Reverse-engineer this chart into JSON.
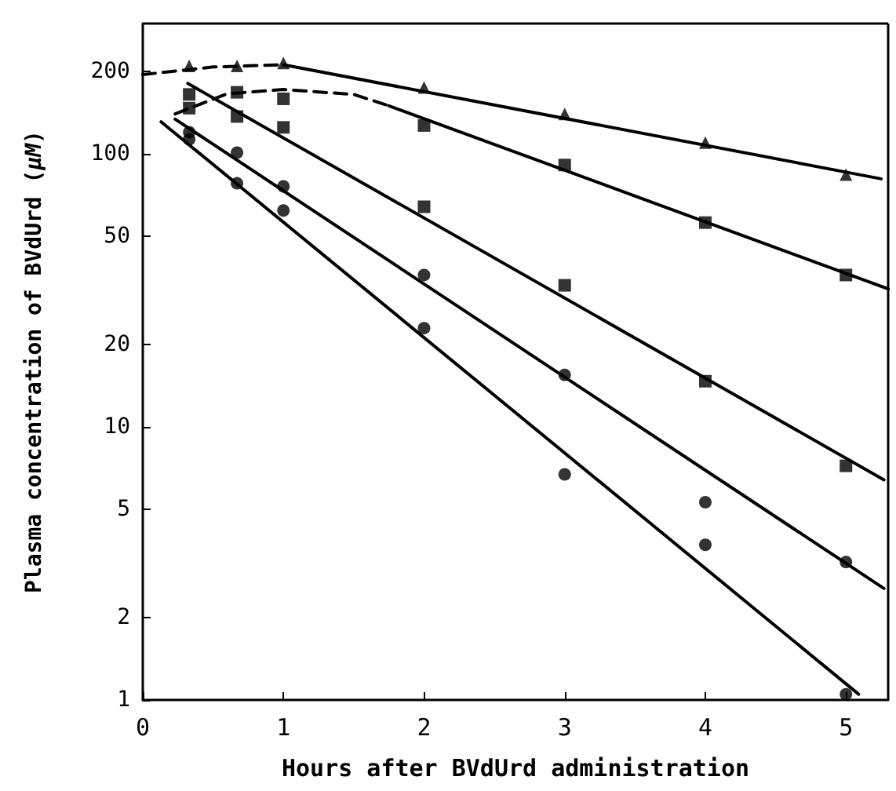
{
  "chart_data": {
    "type": "scatter",
    "xlabel": "Hours after BVdUrd administration",
    "ylabel": "Plasma concentration of BVdUrd (μM)",
    "log": "y",
    "grid": false,
    "xlim": [
      0,
      5.3
    ],
    "xticks": [
      0,
      1,
      2,
      3,
      4,
      5
    ],
    "ylim": [
      1,
      300
    ],
    "yticks": [
      1,
      2,
      5,
      10,
      20,
      50,
      100,
      200
    ],
    "series": [
      {
        "color": "#000000",
        "marker": "triangle",
        "x": [
          0.33,
          0.67,
          1,
          2,
          3,
          4,
          5
        ],
        "values": [
          210,
          210,
          215,
          175,
          140,
          110,
          84
        ]
      },
      {
        "color": "#000000",
        "marker": "square",
        "x": [
          0.33,
          0.67,
          1,
          2,
          3,
          4,
          5
        ],
        "values": [
          147,
          168,
          159,
          127,
          91,
          56,
          36
        ]
      },
      {
        "color": "#000000",
        "marker": "square",
        "x": [
          0.33,
          0.67,
          1,
          2,
          3,
          4,
          5
        ],
        "values": [
          165,
          137,
          125,
          64,
          33,
          14.7,
          7.2
        ]
      },
      {
        "color": "#000000",
        "marker": "circle",
        "x": [
          0.33,
          0.67,
          1,
          2,
          3,
          4,
          5
        ],
        "values": [
          120,
          101,
          76,
          36,
          15.5,
          5.3,
          3.2
        ]
      },
      {
        "color": "#000000",
        "marker": "circle",
        "x": [
          0.33,
          0.67,
          1,
          2,
          3,
          4,
          5
        ],
        "values": [
          113,
          78,
          62,
          23,
          6.7,
          3.7,
          1.05
        ]
      },
      {
        "type": "line",
        "color": "#000000",
        "marker": "none",
        "line_style": "dashed",
        "x": [
          0,
          0.5,
          1
        ],
        "values": [
          195,
          208,
          212
        ]
      },
      {
        "type": "line",
        "color": "#000000",
        "marker": "none",
        "line_style": "solid",
        "x": [
          1,
          5.25
        ],
        "values": [
          212,
          81
        ]
      },
      {
        "type": "line",
        "color": "#000000",
        "marker": "none",
        "line_style": "dashed",
        "x": [
          0.23,
          0.6,
          1,
          1.5,
          1.75
        ],
        "values": [
          140,
          166,
          172,
          165,
          150
        ]
      },
      {
        "type": "line",
        "color": "#000000",
        "marker": "none",
        "line_style": "solid",
        "x": [
          1.75,
          5.3
        ],
        "values": [
          150,
          32
        ]
      },
      {
        "type": "line",
        "color": "#000000",
        "marker": "none",
        "line_style": "solid",
        "x": [
          0.32,
          5.27
        ],
        "values": [
          181,
          6.4
        ]
      },
      {
        "type": "line",
        "color": "#000000",
        "marker": "none",
        "line_style": "solid",
        "x": [
          0.23,
          5.27
        ],
        "values": [
          134,
          2.56
        ]
      },
      {
        "type": "line",
        "color": "#000000",
        "marker": "none",
        "line_style": "solid",
        "x": [
          0.13,
          5.09
        ],
        "values": [
          131,
          1.05
        ]
      }
    ]
  }
}
